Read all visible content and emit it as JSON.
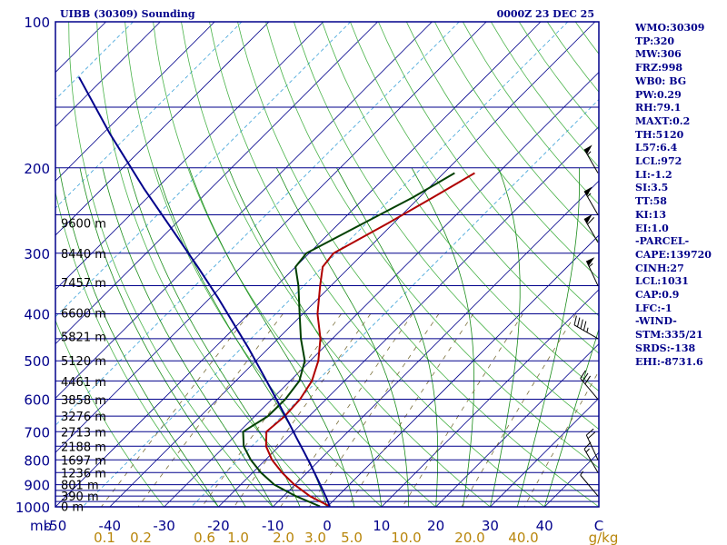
{
  "chart_data": {
    "type": "line",
    "title": "UIBB (30309) Sounding",
    "datetime": "0000Z 23 DEC 25",
    "pressure_ticks": [
      "100",
      "200",
      "300",
      "400",
      "500",
      "600",
      "700",
      "800",
      "900",
      "1000"
    ],
    "temp_ticks": [
      "-50",
      "-40",
      "-30",
      "-20",
      "-10",
      "0",
      "10",
      "20",
      "30",
      "40",
      "C"
    ],
    "mixing_ratio_ticks": [
      "0.1",
      "0.2",
      "0.6",
      "1.0",
      "2.0",
      "3.0",
      "5.0",
      "10.0",
      "20.0",
      "40.0",
      "g/kg"
    ],
    "unit_label": "mb",
    "ylim": [
      1000,
      100
    ],
    "xlim": [
      -50,
      50
    ],
    "isobars_mb": [
      100,
      150,
      200,
      250,
      300,
      350,
      400,
      450,
      500,
      550,
      600,
      650,
      700,
      750,
      800,
      850,
      900,
      925,
      950,
      975,
      1000
    ],
    "height_labels": [
      {
        "label": "9600 m",
        "p": 260
      },
      {
        "label": "8440 m",
        "p": 300
      },
      {
        "label": "7457 m",
        "p": 345
      },
      {
        "label": "6600 m",
        "p": 398
      },
      {
        "label": "5821 m",
        "p": 446
      },
      {
        "label": "5120 m",
        "p": 500
      },
      {
        "label": "4461 m",
        "p": 552
      },
      {
        "label": "3858 m",
        "p": 601
      },
      {
        "label": "3276 m",
        "p": 650
      },
      {
        "label": "2713 m",
        "p": 700
      },
      {
        "label": "2188 m",
        "p": 750
      },
      {
        "label": "1697 m",
        "p": 800
      },
      {
        "label": "1236 m",
        "p": 850
      },
      {
        "label": "801 m",
        "p": 900
      },
      {
        "label": "390 m",
        "p": 950
      },
      {
        "label": "0 m",
        "p": 998
      }
    ],
    "series": [
      {
        "name": "Temperature",
        "color": "#b00000",
        "points": [
          [
            998,
            0.4
          ],
          [
            950,
            -5.2
          ],
          [
            900,
            -10.1
          ],
          [
            850,
            -14.6
          ],
          [
            800,
            -18.8
          ],
          [
            750,
            -22.4
          ],
          [
            700,
            -25.0
          ],
          [
            650,
            -24.5
          ],
          [
            600,
            -24.8
          ],
          [
            550,
            -26.0
          ],
          [
            500,
            -28.5
          ],
          [
            450,
            -32.2
          ],
          [
            400,
            -37.3
          ],
          [
            350,
            -42.0
          ],
          [
            320,
            -45.0
          ],
          [
            300,
            -45.5
          ],
          [
            260,
            -41.0
          ],
          [
            230,
            -37.5
          ],
          [
            205,
            -34.3
          ]
        ]
      },
      {
        "name": "Dew Point",
        "color": "#004000",
        "points": [
          [
            998,
            -1.4
          ],
          [
            950,
            -7.8
          ],
          [
            900,
            -13.8
          ],
          [
            850,
            -18.5
          ],
          [
            800,
            -22.7
          ],
          [
            750,
            -26.5
          ],
          [
            700,
            -29.3
          ],
          [
            650,
            -27.6
          ],
          [
            600,
            -27.5
          ],
          [
            550,
            -28.3
          ],
          [
            500,
            -31.0
          ],
          [
            450,
            -35.8
          ],
          [
            400,
            -40.6
          ],
          [
            350,
            -46.0
          ],
          [
            320,
            -50.0
          ],
          [
            300,
            -50.5
          ],
          [
            260,
            -45.5
          ],
          [
            230,
            -41.2
          ],
          [
            205,
            -38.0
          ]
        ]
      },
      {
        "name": "Parcel",
        "color": "#00008b",
        "points": [
          [
            998,
            0.4
          ],
          [
            960,
            -1.7
          ],
          [
            920,
            -4.1
          ],
          [
            870,
            -7.3
          ],
          [
            820,
            -10.7
          ],
          [
            770,
            -14.4
          ],
          [
            720,
            -18.4
          ],
          [
            670,
            -22.6
          ],
          [
            620,
            -27.2
          ],
          [
            570,
            -32.2
          ],
          [
            520,
            -37.7
          ],
          [
            470,
            -43.8
          ],
          [
            420,
            -50.8
          ],
          [
            370,
            -58.7
          ],
          [
            320,
            -68.0
          ],
          [
            270,
            -79.1
          ],
          [
            220,
            -92.5
          ],
          [
            170,
            -108.7
          ],
          [
            130,
            -124.8
          ]
        ]
      }
    ],
    "wind_barbs": [
      {
        "p": 205,
        "dir": 330,
        "kt": 55
      },
      {
        "p": 250,
        "dir": 330,
        "kt": 55
      },
      {
        "p": 285,
        "dir": 330,
        "kt": 60
      },
      {
        "p": 350,
        "dir": 335,
        "kt": 55
      },
      {
        "p": 450,
        "dir": 300,
        "kt": 45
      },
      {
        "p": 600,
        "dir": 320,
        "kt": 30
      },
      {
        "p": 800,
        "dir": 335,
        "kt": 20
      },
      {
        "p": 850,
        "dir": 330,
        "kt": 15
      },
      {
        "p": 950,
        "dir": 320,
        "kt": 5
      }
    ]
  },
  "indices": [
    "WMO:30309",
    "TP:320",
    "MW:306",
    "FRZ:998",
    "WB0: BG",
    "PW:0.29",
    "RH:79.1",
    "MAXT:0.2",
    "TH:5120",
    "L57:6.4",
    "LCL:972",
    "LI:-1.2",
    "SI:3.5",
    "TT:58",
    "KI:13",
    "EI:1.0",
    "-PARCEL-",
    "CAPE:139720",
    "CINH:27",
    "LCL:1031",
    "CAP:0.9",
    "LFC:-1",
    "-WIND-",
    "STM:335/21",
    "SRDS:-138",
    "EHI:-8731.6"
  ],
  "colors": {
    "frame": "#00008b",
    "isobar": "#00008b",
    "isotherm": "#00008b",
    "dry_adiabat": "#4ab34a",
    "moist_adiabat": "#1a8c1a",
    "mixing_ratio": "#7a6e3a",
    "isotherm_minor": "#3aa0d8",
    "axis_text": "#00008b",
    "mixing_text": "#b8860b"
  }
}
